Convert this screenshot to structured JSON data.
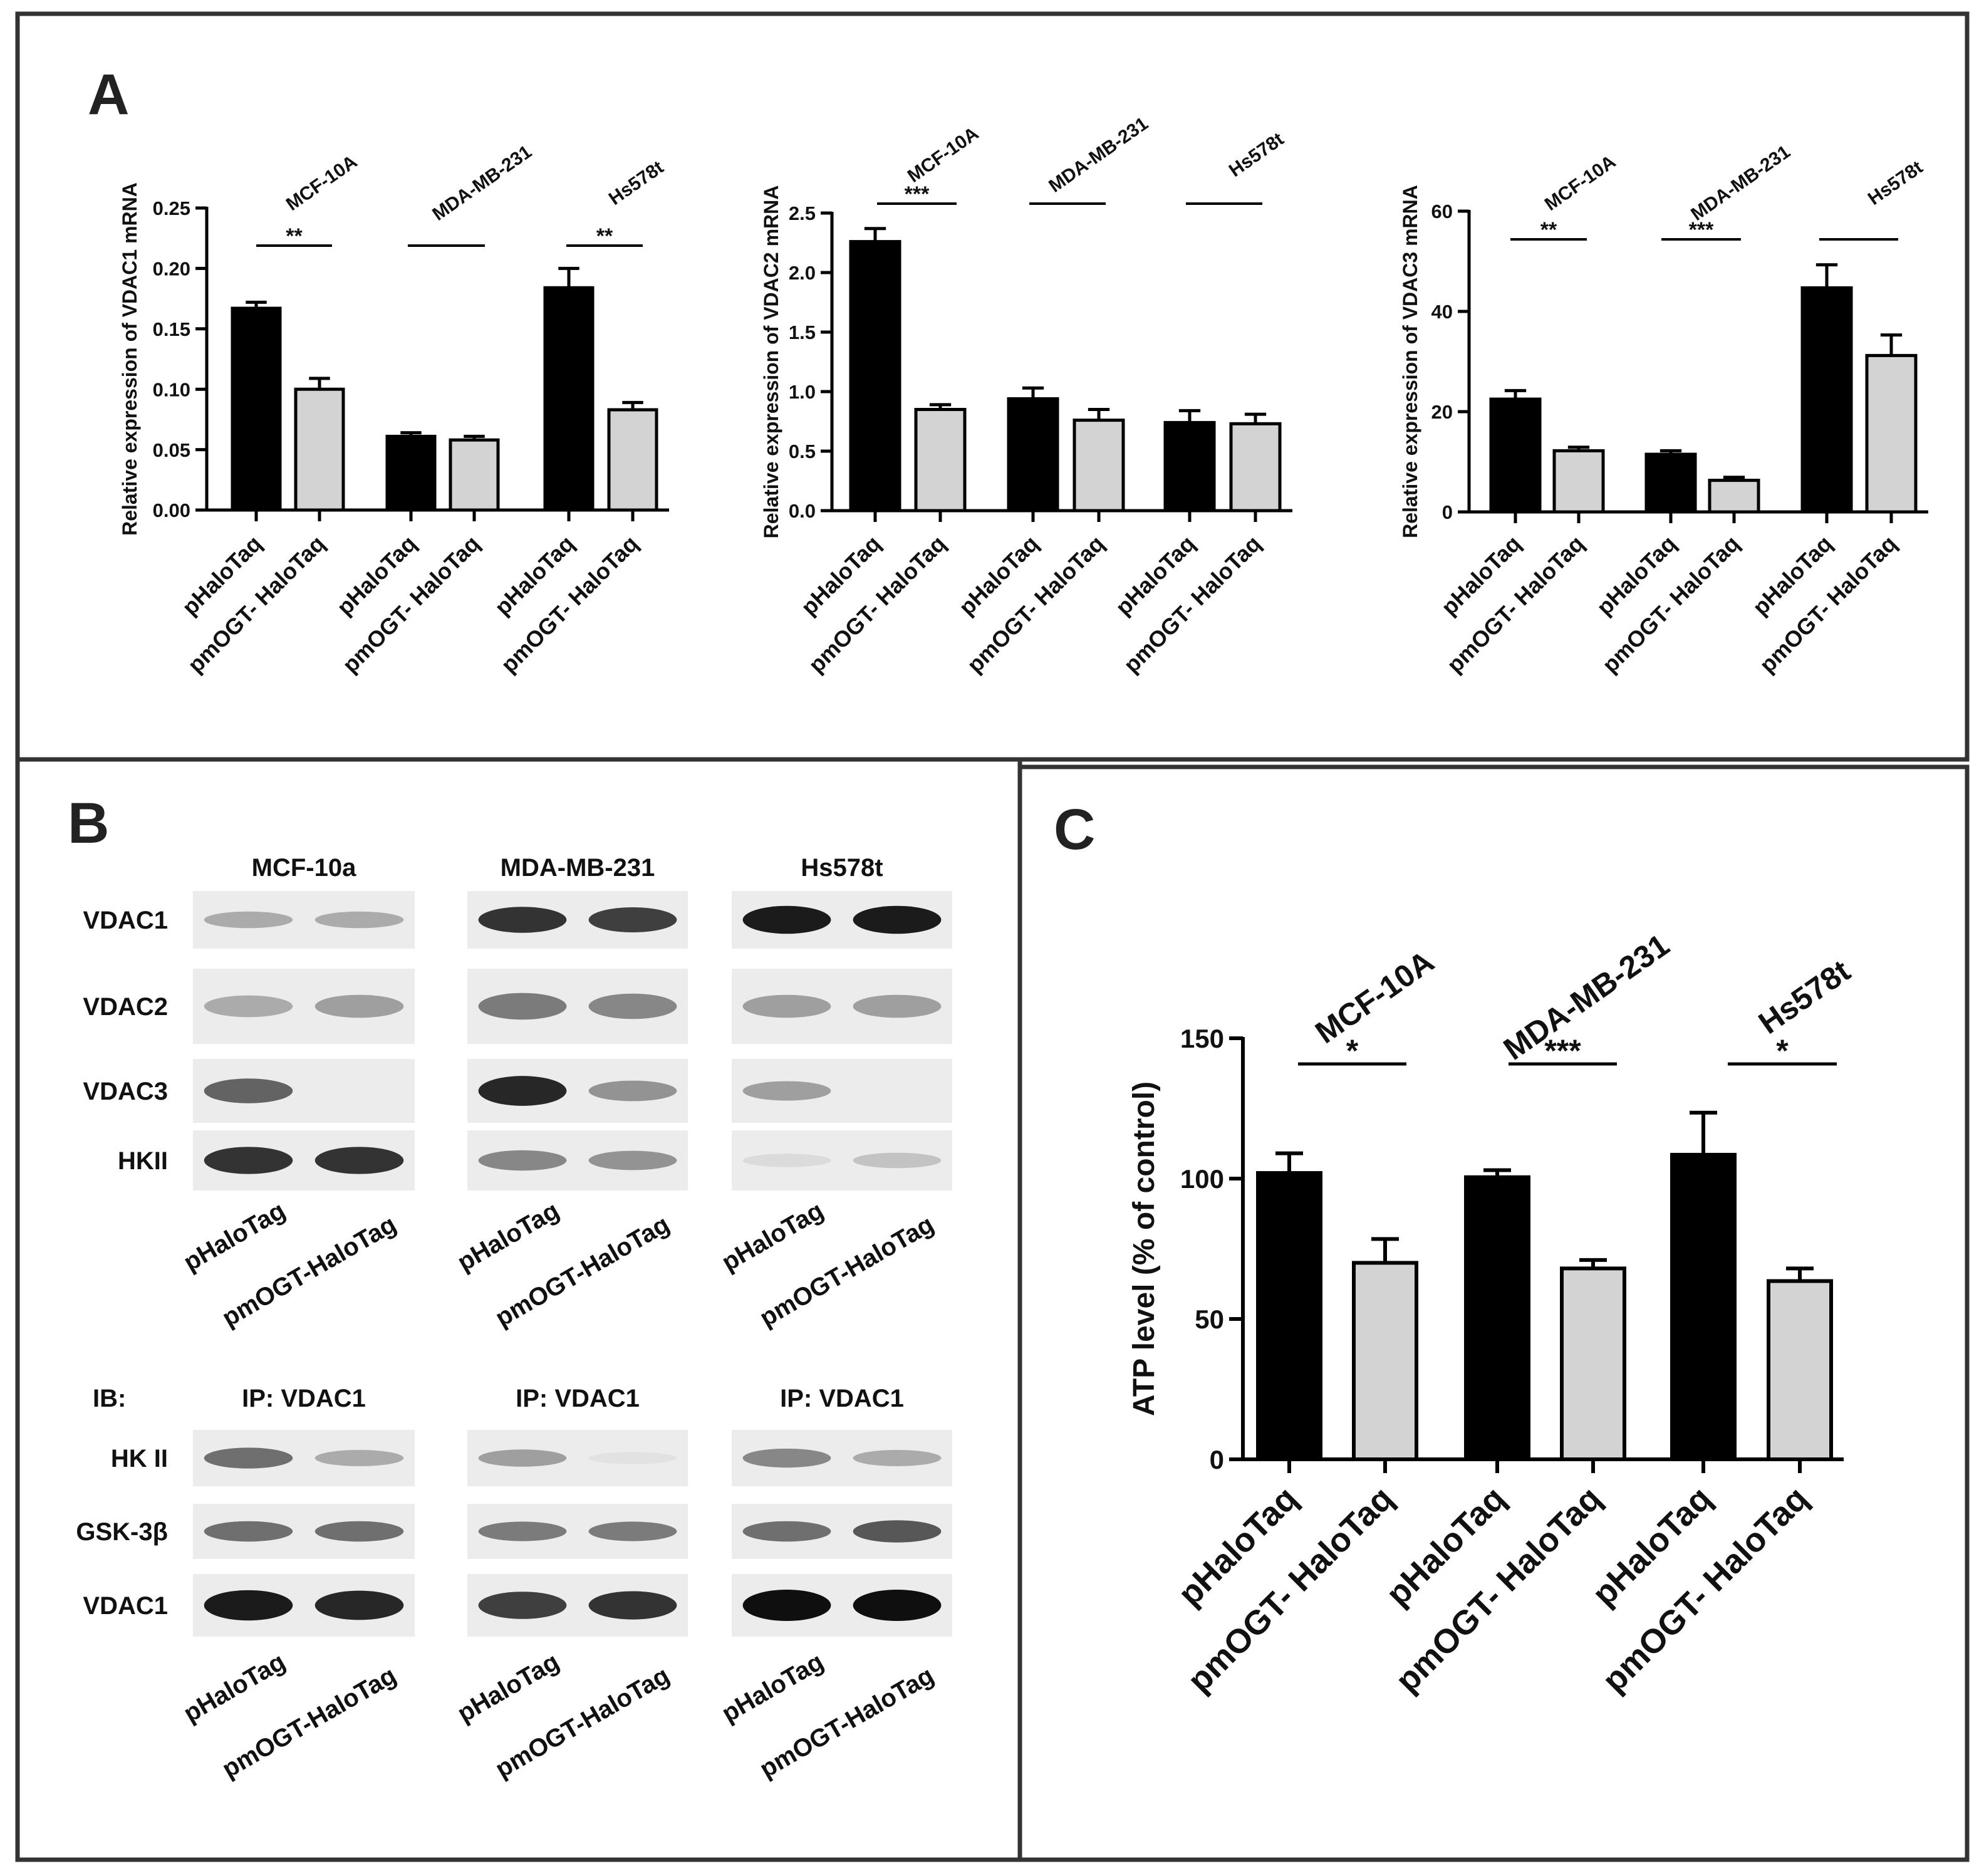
{
  "panels": {
    "a": {
      "label": "A"
    },
    "b": {
      "label": "B"
    },
    "c": {
      "label": "C"
    }
  },
  "colors": {
    "black_bar": "#000000",
    "grey_bar": "#d3d3d3",
    "frame": "#333333"
  },
  "chart_data": [
    {
      "id": "A1",
      "type": "bar",
      "ylabel": "Relative expression of VDAC1 mRNA",
      "ylim": [
        0,
        0.25
      ],
      "yticks": [
        "0.00",
        "0.05",
        "0.10",
        "0.15",
        "0.20",
        "0.25"
      ],
      "yticks_v": [
        0,
        0.05,
        0.1,
        0.15,
        0.2,
        0.25
      ],
      "groups": [
        "MCF-10A",
        "MDA-MB-231",
        "Hs578t"
      ],
      "categories": [
        "pHaloTaq",
        "pmOGT- HaloTaq",
        "pHaloTaq",
        "pmOGT- HaloTaq",
        "pHaloTaq",
        "pmOGT- HaloTaq"
      ],
      "values": [
        0.167,
        0.1,
        0.061,
        0.058,
        0.184,
        0.083
      ],
      "errors": [
        0.005,
        0.009,
        0.003,
        0.003,
        0.016,
        0.006
      ],
      "significance": [
        "**",
        "",
        "**"
      ]
    },
    {
      "id": "A2",
      "type": "bar",
      "ylabel": "Relative expression of VDAC2 mRNA",
      "ylim": [
        0,
        2.5
      ],
      "yticks": [
        "0.0",
        "0.5",
        "1.0",
        "1.5",
        "2.0",
        "2.5"
      ],
      "yticks_v": [
        0,
        0.5,
        1.0,
        1.5,
        2.0,
        2.5
      ],
      "groups": [
        "MCF-10A",
        "MDA-MB-231",
        "Hs578t"
      ],
      "categories": [
        "pHaloTaq",
        "pmOGT- HaloTaq",
        "pHaloTaq",
        "pmOGT- HaloTaq",
        "pHaloTaq",
        "pmOGT- HaloTaq"
      ],
      "values": [
        2.26,
        0.85,
        0.94,
        0.76,
        0.74,
        0.73
      ],
      "errors": [
        0.11,
        0.04,
        0.09,
        0.09,
        0.1,
        0.08
      ],
      "significance": [
        "***",
        "",
        ""
      ]
    },
    {
      "id": "A3",
      "type": "bar",
      "ylabel": "Relative expression of VDAC3 mRNA",
      "ylim": [
        0,
        60
      ],
      "yticks": [
        "0",
        "20",
        "40",
        "60"
      ],
      "yticks_v": [
        0,
        20,
        40,
        60
      ],
      "groups": [
        "MCF-10A",
        "MDA-MB-231",
        "Hs578t"
      ],
      "categories": [
        "pHaloTaq",
        "pmOGT- HaloTaq",
        "pHaloTaq",
        "pmOGT- HaloTaq",
        "pHaloTaq",
        "pmOGT- HaloTaq"
      ],
      "values": [
        22.5,
        12.2,
        11.5,
        6.3,
        44.7,
        31.2
      ],
      "errors": [
        1.7,
        0.7,
        0.7,
        0.6,
        4.6,
        4.1
      ],
      "significance": [
        "**",
        "***",
        ""
      ]
    },
    {
      "id": "C",
      "type": "bar",
      "ylabel": "ATP level (% of control)",
      "ylim": [
        0,
        150
      ],
      "yticks": [
        "0",
        "50",
        "100",
        "150"
      ],
      "yticks_v": [
        0,
        50,
        100,
        150
      ],
      "groups": [
        "MCF-10A",
        "MDA-MB-231",
        "Hs578t"
      ],
      "categories": [
        "pHaloTaq",
        "pmOGT- HaloTaq",
        "pHaloTaq",
        "pmOGT- HaloTaq",
        "pHaloTaq",
        "pmOGT- HaloTaq"
      ],
      "values": [
        102,
        70,
        100.5,
        68,
        108.5,
        63.5
      ],
      "errors": [
        7,
        8.5,
        2.5,
        3,
        15,
        4.5
      ],
      "significance": [
        "*",
        "***",
        "*"
      ]
    }
  ],
  "blots": {
    "top": {
      "cells": [
        "MCF-10a",
        "MDA-MB-231",
        "Hs578t"
      ],
      "rows": [
        "VDAC1",
        "VDAC2",
        "VDAC3",
        "HKII"
      ],
      "lanes": [
        "pHaloTag",
        "pmOGT-HaloTag"
      ],
      "intensity": [
        [
          [
            0.35,
            0.35
          ],
          [
            0.85,
            0.8
          ],
          [
            0.95,
            0.95
          ]
        ],
        [
          [
            0.35,
            0.4
          ],
          [
            0.55,
            0.5
          ],
          [
            0.4,
            0.4
          ]
        ],
        [
          [
            0.65,
            0.0
          ],
          [
            0.9,
            0.45
          ],
          [
            0.4,
            0.08
          ]
        ],
        [
          [
            0.85,
            0.85
          ],
          [
            0.5,
            0.45
          ],
          [
            0.15,
            0.25
          ]
        ]
      ]
    },
    "bottom": {
      "ib_label": "IB:",
      "ip_label": "IP: VDAC1",
      "rows": [
        "HK II",
        "GSK-3β",
        "VDAC1"
      ],
      "lanes": [
        "pHaloTag",
        "pmOGT-HaloTag"
      ],
      "intensity": [
        [
          [
            0.6,
            0.35
          ],
          [
            0.4,
            0.12
          ],
          [
            0.5,
            0.35
          ]
        ],
        [
          [
            0.6,
            0.6
          ],
          [
            0.55,
            0.55
          ],
          [
            0.6,
            0.7
          ]
        ],
        [
          [
            0.95,
            0.9
          ],
          [
            0.8,
            0.85
          ],
          [
            1.0,
            1.0
          ]
        ]
      ]
    }
  }
}
